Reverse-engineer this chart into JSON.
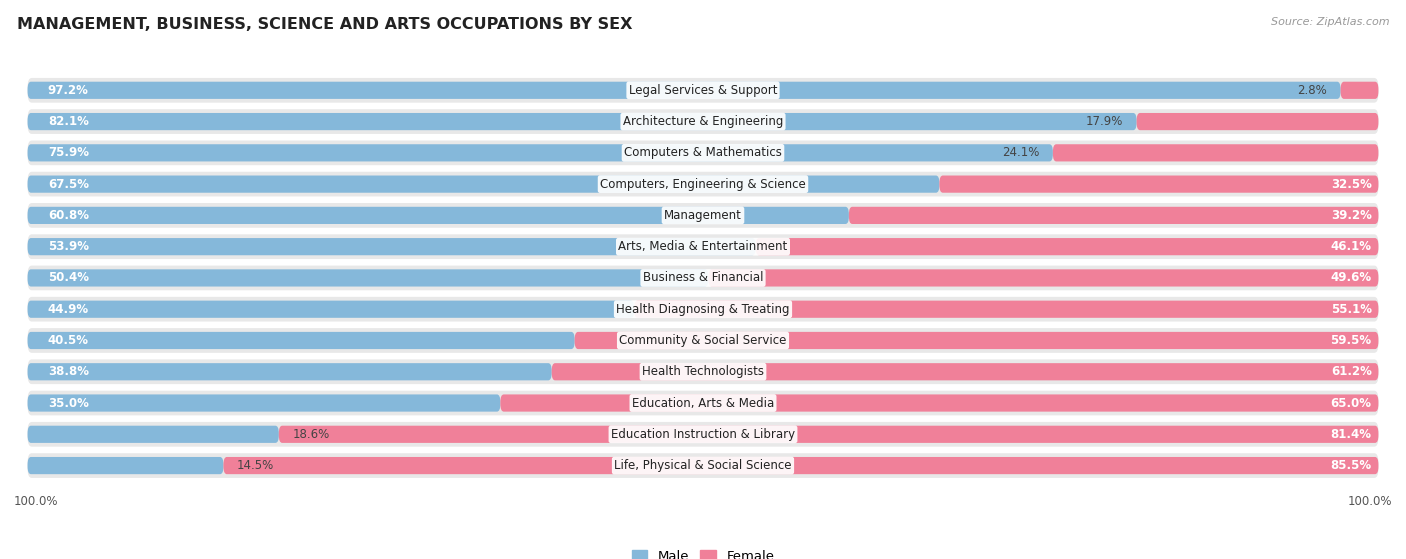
{
  "title": "MANAGEMENT, BUSINESS, SCIENCE AND ARTS OCCUPATIONS BY SEX",
  "source": "Source: ZipAtlas.com",
  "categories": [
    "Legal Services & Support",
    "Architecture & Engineering",
    "Computers & Mathematics",
    "Computers, Engineering & Science",
    "Management",
    "Arts, Media & Entertainment",
    "Business & Financial",
    "Health Diagnosing & Treating",
    "Community & Social Service",
    "Health Technologists",
    "Education, Arts & Media",
    "Education Instruction & Library",
    "Life, Physical & Social Science"
  ],
  "male": [
    97.2,
    82.1,
    75.9,
    67.5,
    60.8,
    53.9,
    50.4,
    44.9,
    40.5,
    38.8,
    35.0,
    18.6,
    14.5
  ],
  "female": [
    2.8,
    17.9,
    24.1,
    32.5,
    39.2,
    46.1,
    49.6,
    55.1,
    59.5,
    61.2,
    65.0,
    81.4,
    85.5
  ],
  "male_color": "#85b8da",
  "female_color": "#f08099",
  "row_bg_color": "#e8e8e8",
  "white_bg": "#ffffff",
  "title_fontsize": 11.5,
  "bar_value_fontsize": 8.5,
  "cat_label_fontsize": 8.5,
  "source_fontsize": 8.0,
  "legend_fontsize": 9.5,
  "axis_label_fontsize": 8.5
}
